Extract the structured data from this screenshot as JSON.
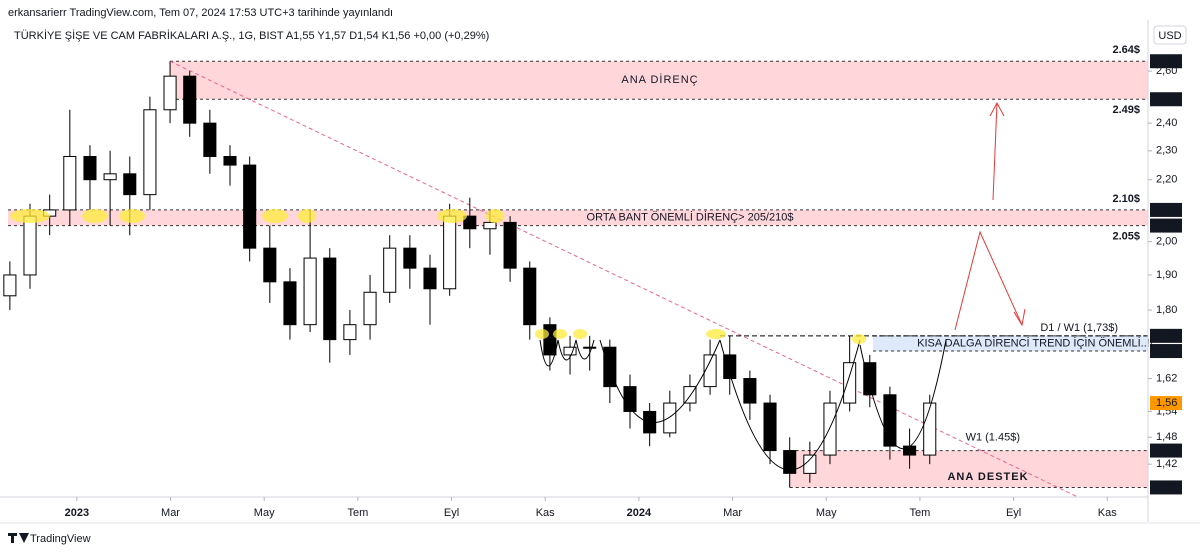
{
  "chart_data": {
    "type": "candlestick",
    "header": "erkansarierr TradingView.com, Tem 07, 2024 17:53 UTC+3 tarihinde yayınlandı",
    "symbol": "TÜRKİYE ŞİŞE VE CAM FABRİKALARI A.Ş., 1G, BIST  A1,55  Y1,57  D1,54  K1,56  +0,00 (+0,29%)",
    "currency": "USD",
    "footer": "TradingView",
    "log_y": true,
    "up_color": "#ffffff",
    "down_color": "#000000",
    "x": [
      -1.43,
      -1.0,
      -0.58,
      -0.15,
      0.28,
      0.71,
      1.13,
      1.56,
      1.99,
      2.41,
      2.84,
      3.27,
      3.69,
      4.12,
      4.55,
      4.98,
      5.4,
      5.83,
      6.26,
      6.68,
      7.11,
      7.54,
      7.96,
      8.39,
      8.82,
      9.25,
      9.67,
      10.1,
      10.53,
      10.95,
      11.38,
      11.81,
      12.23,
      12.66,
      13.09,
      13.52,
      13.94,
      14.37,
      14.8,
      15.22,
      15.65,
      16.08,
      16.5,
      16.93,
      17.36,
      17.78,
      18.21
    ],
    "open": [
      1.84,
      1.9,
      2.08,
      2.1,
      2.28,
      2.2,
      2.22,
      2.15,
      2.45,
      2.58,
      2.4,
      2.28,
      2.25,
      1.98,
      1.88,
      1.76,
      1.95,
      1.72,
      1.76,
      1.85,
      1.98,
      1.92,
      1.86,
      2.08,
      2.04,
      2.06,
      1.92,
      1.76,
      1.68,
      1.7,
      1.7,
      1.6,
      1.54,
      1.49,
      1.56,
      1.6,
      1.68,
      1.62,
      1.56,
      1.45,
      1.4,
      1.44,
      1.56,
      1.66,
      1.58,
      1.46,
      1.44
    ],
    "high": [
      1.94,
      2.12,
      2.15,
      2.45,
      2.32,
      2.3,
      2.28,
      2.5,
      2.64,
      2.6,
      2.45,
      2.32,
      2.28,
      2.05,
      1.92,
      2.1,
      1.98,
      1.8,
      1.9,
      2.02,
      2.02,
      1.96,
      2.12,
      2.14,
      2.1,
      2.08,
      1.94,
      1.78,
      1.73,
      1.73,
      1.72,
      1.63,
      1.56,
      1.59,
      1.63,
      1.72,
      1.73,
      1.64,
      1.58,
      1.48,
      1.47,
      1.59,
      1.73,
      1.68,
      1.6,
      1.5,
      1.58
    ],
    "low": [
      1.8,
      1.86,
      2.02,
      2.05,
      2.1,
      2.05,
      2.02,
      2.1,
      2.4,
      2.35,
      2.22,
      2.18,
      1.94,
      1.82,
      1.72,
      1.74,
      1.66,
      1.68,
      1.72,
      1.82,
      1.86,
      1.76,
      1.84,
      1.98,
      1.96,
      1.88,
      1.72,
      1.64,
      1.63,
      1.64,
      1.56,
      1.5,
      1.46,
      1.48,
      1.54,
      1.58,
      1.58,
      1.52,
      1.42,
      1.37,
      1.38,
      1.42,
      1.54,
      1.55,
      1.43,
      1.41,
      1.42
    ],
    "close": [
      1.9,
      2.08,
      2.1,
      2.28,
      2.2,
      2.22,
      2.15,
      2.45,
      2.58,
      2.4,
      2.28,
      2.25,
      1.98,
      1.88,
      1.76,
      1.95,
      1.72,
      1.76,
      1.85,
      1.98,
      1.92,
      1.86,
      2.08,
      2.04,
      2.06,
      1.92,
      1.76,
      1.68,
      1.7,
      1.7,
      1.6,
      1.54,
      1.49,
      1.56,
      1.6,
      1.68,
      1.62,
      1.56,
      1.45,
      1.4,
      1.44,
      1.56,
      1.66,
      1.58,
      1.46,
      1.44,
      1.56
    ],
    "xlim": [
      -1.47,
      22.87
    ],
    "xticks": [
      {
        "value": 0,
        "label": "2023"
      },
      {
        "value": 2,
        "label": "Mar"
      },
      {
        "value": 4,
        "label": "May"
      },
      {
        "value": 6,
        "label": "Tem"
      },
      {
        "value": 8,
        "label": "Eyl"
      },
      {
        "value": 10,
        "label": "Kas"
      },
      {
        "value": 12,
        "label": "2024"
      },
      {
        "value": 14,
        "label": "Mar"
      },
      {
        "value": 16,
        "label": "May"
      },
      {
        "value": 18,
        "label": "Tem"
      },
      {
        "value": 20,
        "label": "Eyl"
      },
      {
        "value": 22,
        "label": "Kas"
      }
    ],
    "ylim": [
      1.35,
      2.77
    ],
    "yticks": [
      {
        "value": 2.6,
        "label": "2,60"
      },
      {
        "value": 2.4,
        "label": "2,40"
      },
      {
        "value": 2.3,
        "label": "2,30"
      },
      {
        "value": 2.2,
        "label": "2,20"
      },
      {
        "value": 2.0,
        "label": "2,00"
      },
      {
        "value": 1.9,
        "label": "1,90"
      },
      {
        "value": 1.8,
        "label": "1,80"
      },
      {
        "value": 1.62,
        "label": "1,62"
      },
      {
        "value": 1.54,
        "label": "1,54"
      },
      {
        "value": 1.48,
        "label": "1,48"
      },
      {
        "value": 1.42,
        "label": "1,42"
      }
    ],
    "price_labels": [
      {
        "value": 2.64,
        "label": "2,64"
      },
      {
        "value": 2.49,
        "label": "2,49"
      },
      {
        "value": 2.1,
        "label": "2,10"
      },
      {
        "value": 2.05,
        "label": "2,05"
      },
      {
        "value": 1.73,
        "label": "1,73"
      },
      {
        "value": 1.69,
        "label": "1,69"
      },
      {
        "value": 1.45,
        "label": "1,45"
      },
      {
        "value": 1.37,
        "label": "1,37"
      }
    ],
    "last_price": {
      "value": 1.56,
      "label": "1,56",
      "color": "#ff9800"
    },
    "zones": [
      {
        "label": "ANA DİRENÇ",
        "low": 2.49,
        "high": 2.64,
        "from": 1.99,
        "color": "#ffcdd2",
        "text_color": "#000000"
      },
      {
        "label": "ORTA BANT ÖNEMLİ DİRENÇ> 205/210$",
        "low": 2.05,
        "high": 2.1,
        "from": -1.47,
        "color": "#ffcdd2",
        "text_color": "#7b1fd6"
      },
      {
        "label": "KISA DALGA DİRENCİ TREND İÇİN ÖNEMLİ..!!",
        "low": 1.69,
        "high": 1.73,
        "from": 17.0,
        "color": "#d6e4f7",
        "text_color": "#000000"
      },
      {
        "label": "ANA DESTEK",
        "low": 1.37,
        "high": 1.45,
        "from": 15.22,
        "color": "#ffcdd2",
        "text_color": "#000000"
      }
    ],
    "levels": [
      {
        "label": "2.64$",
        "value": 2.64
      },
      {
        "label": "2.49$",
        "value": 2.49
      },
      {
        "label": "2.10$",
        "value": 2.1
      },
      {
        "label": "2.05$",
        "value": 2.05
      },
      {
        "label": "D1 / W1  (1,73$)",
        "value": 1.73
      },
      {
        "label": "W1 (1.45$)",
        "value": 1.45
      }
    ],
    "trendline": {
      "x": [
        1.99,
        21.37
      ],
      "y": [
        2.64,
        1.35
      ],
      "color": "#f06292"
    }
  }
}
